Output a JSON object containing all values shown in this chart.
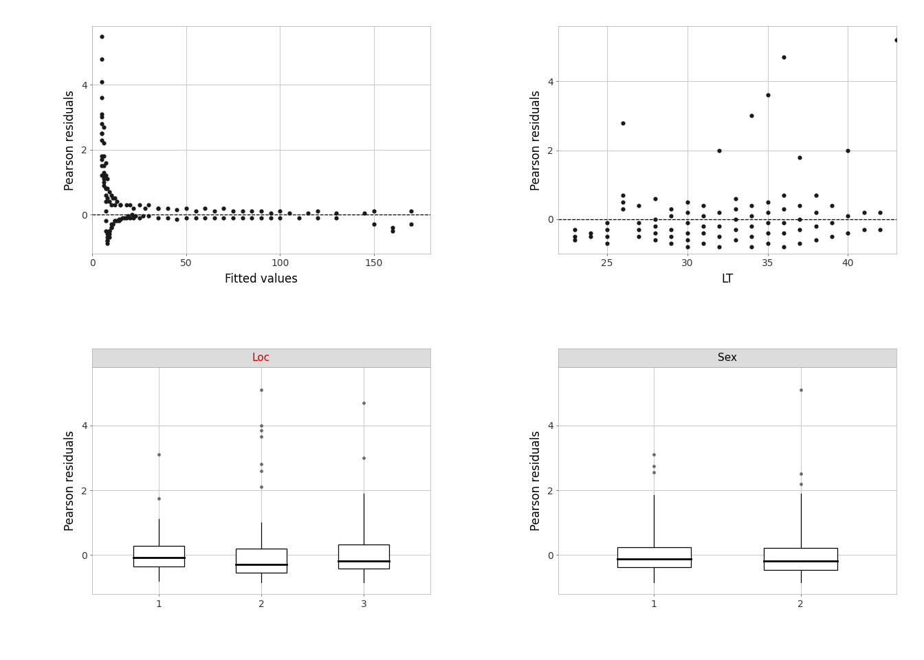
{
  "scatter1_x": [
    5,
    5,
    5,
    5,
    5,
    6,
    6,
    6,
    6,
    7,
    7,
    7,
    7,
    7,
    8,
    8,
    8,
    8,
    8,
    9,
    9,
    9,
    9,
    10,
    10,
    10,
    11,
    11,
    12,
    12,
    13,
    14,
    14,
    15,
    16,
    17,
    18,
    19,
    20,
    21,
    22,
    23,
    25,
    27,
    30,
    35,
    40,
    45,
    50,
    55,
    60,
    65,
    70,
    75,
    80,
    85,
    90,
    95,
    100,
    110,
    120,
    130,
    150,
    160,
    170,
    5,
    5,
    5,
    6,
    6,
    7,
    7,
    8,
    8,
    9,
    10,
    11,
    12,
    13,
    15,
    20,
    25,
    30,
    35,
    40,
    50,
    60,
    70,
    80,
    90,
    100,
    120,
    150,
    170,
    5,
    5,
    5,
    5,
    5,
    5,
    6,
    6,
    6,
    7,
    7,
    8,
    9,
    10,
    12,
    15,
    18,
    22,
    28,
    35,
    45,
    55,
    65,
    75,
    85,
    95,
    105,
    115,
    130,
    145,
    160
  ],
  "scatter1_y": [
    5.5,
    4.8,
    4.1,
    3.6,
    3.1,
    2.7,
    2.2,
    1.8,
    1.2,
    0.8,
    0.4,
    0.1,
    -0.2,
    -0.5,
    -0.6,
    -0.7,
    -0.8,
    -0.9,
    -0.8,
    -0.7,
    -0.6,
    -0.5,
    -0.5,
    -0.4,
    -0.4,
    -0.3,
    -0.3,
    -0.3,
    -0.2,
    -0.2,
    -0.2,
    -0.2,
    -0.15,
    -0.15,
    -0.1,
    -0.1,
    -0.1,
    -0.05,
    -0.1,
    0.0,
    -0.1,
    -0.05,
    -0.1,
    -0.05,
    -0.05,
    -0.1,
    -0.1,
    -0.15,
    -0.1,
    -0.1,
    -0.1,
    -0.1,
    -0.1,
    -0.1,
    -0.1,
    -0.1,
    -0.1,
    -0.1,
    -0.1,
    -0.1,
    -0.1,
    -0.1,
    -0.3,
    -0.4,
    -0.3,
    2.5,
    1.8,
    1.2,
    1.5,
    1.0,
    1.6,
    1.2,
    1.1,
    0.8,
    0.7,
    0.6,
    0.5,
    0.5,
    0.4,
    0.3,
    0.3,
    0.3,
    0.3,
    0.2,
    0.2,
    0.2,
    0.2,
    0.2,
    0.1,
    0.1,
    0.1,
    0.1,
    0.1,
    0.1,
    3.0,
    2.8,
    2.5,
    2.3,
    1.7,
    1.5,
    1.3,
    1.1,
    0.9,
    0.8,
    0.6,
    0.5,
    0.4,
    0.3,
    0.3,
    0.3,
    0.3,
    0.2,
    0.2,
    0.2,
    0.15,
    0.1,
    0.1,
    0.1,
    0.1,
    0.05,
    0.05,
    0.05,
    0.05,
    0.05,
    -0.5
  ],
  "scatter2_x": [
    23,
    23,
    23,
    24,
    24,
    25,
    25,
    25,
    25,
    26,
    26,
    26,
    26,
    27,
    27,
    27,
    27,
    28,
    28,
    28,
    28,
    28,
    29,
    29,
    29,
    29,
    29,
    30,
    30,
    30,
    30,
    30,
    30,
    31,
    31,
    31,
    31,
    31,
    32,
    32,
    32,
    32,
    32,
    33,
    33,
    33,
    33,
    33,
    34,
    34,
    34,
    34,
    34,
    34,
    35,
    35,
    35,
    35,
    35,
    35,
    36,
    36,
    36,
    36,
    36,
    36,
    37,
    37,
    37,
    37,
    37,
    38,
    38,
    38,
    38,
    39,
    39,
    39,
    40,
    40,
    40,
    41,
    41,
    42,
    42,
    43
  ],
  "scatter2_y": [
    -0.6,
    -0.5,
    -0.3,
    -0.5,
    -0.4,
    -0.7,
    -0.5,
    -0.3,
    -0.1,
    0.3,
    0.5,
    0.7,
    2.8,
    -0.5,
    -0.3,
    -0.1,
    0.4,
    0.6,
    -0.6,
    -0.4,
    -0.2,
    0.0,
    -0.7,
    -0.5,
    -0.3,
    0.1,
    0.3,
    -0.8,
    -0.6,
    -0.4,
    -0.1,
    0.2,
    0.5,
    -0.7,
    -0.4,
    -0.2,
    0.1,
    0.4,
    -0.8,
    -0.5,
    -0.2,
    0.2,
    2.0,
    -0.6,
    -0.3,
    0.0,
    0.3,
    0.6,
    -0.8,
    -0.5,
    -0.2,
    0.1,
    0.4,
    3.0,
    -0.7,
    -0.4,
    -0.1,
    0.2,
    0.5,
    3.6,
    -0.8,
    -0.4,
    -0.1,
    0.3,
    0.7,
    4.7,
    -0.7,
    -0.3,
    0.0,
    0.4,
    1.8,
    -0.6,
    -0.2,
    0.2,
    0.7,
    -0.5,
    -0.1,
    0.4,
    -0.4,
    0.1,
    2.0,
    -0.3,
    0.2,
    -0.3,
    0.2,
    5.2
  ],
  "boxplot_loc_data": {
    "1": {
      "q1": -0.35,
      "median": -0.07,
      "q3": 0.28,
      "whisker_low": -0.8,
      "whisker_high": 1.1,
      "outliers": [
        1.75,
        3.1
      ]
    },
    "2": {
      "q1": -0.55,
      "median": -0.28,
      "q3": 0.2,
      "whisker_low": -0.85,
      "whisker_high": 1.0,
      "outliers": [
        2.1,
        2.6,
        2.8,
        3.65,
        3.85,
        4.0,
        5.1
      ]
    },
    "3": {
      "q1": -0.42,
      "median": -0.18,
      "q3": 0.32,
      "whisker_low": -0.85,
      "whisker_high": 1.9,
      "outliers": [
        3.0,
        4.7
      ]
    }
  },
  "boxplot_sex_data": {
    "1": {
      "q1": -0.38,
      "median": -0.12,
      "q3": 0.25,
      "whisker_low": -0.85,
      "whisker_high": 1.85,
      "outliers": [
        2.55,
        2.75,
        3.1
      ]
    },
    "2": {
      "q1": -0.45,
      "median": -0.18,
      "q3": 0.22,
      "whisker_low": -0.85,
      "whisker_high": 1.9,
      "outliers": [
        2.2,
        2.5,
        5.1
      ]
    }
  },
  "scatter1_xlim": [
    0,
    180
  ],
  "scatter1_ylim": [
    -1.2,
    5.8
  ],
  "scatter1_xticks": [
    0,
    50,
    100,
    150
  ],
  "scatter1_yticks": [
    0,
    2,
    4
  ],
  "scatter2_xlim": [
    22,
    43
  ],
  "scatter2_ylim": [
    -1.0,
    5.6
  ],
  "scatter2_xticks": [
    25,
    30,
    35,
    40
  ],
  "scatter2_yticks": [
    0,
    2,
    4
  ],
  "boxloc_ylim": [
    -1.2,
    5.8
  ],
  "boxloc_yticks": [
    0,
    2,
    4
  ],
  "boxsex_ylim": [
    -1.2,
    5.8
  ],
  "boxsex_yticks": [
    0,
    2,
    4
  ],
  "panel_bg": "#DCDCDC",
  "plot_bg": "#FFFFFF",
  "grid_color": "#CBCBCB",
  "dot_color": "#1a1a1a",
  "title_color_loc": "#CC0000",
  "title_color_sex": "#000000",
  "xlabel1": "Fitted values",
  "xlabel2": "LT",
  "ylabel": "Pearson residuals",
  "loc_title": "Loc",
  "sex_title": "Sex",
  "font_size_label": 12,
  "font_size_title": 11,
  "font_size_tick": 10,
  "text_color": "#000000",
  "tick_color": "#333333"
}
